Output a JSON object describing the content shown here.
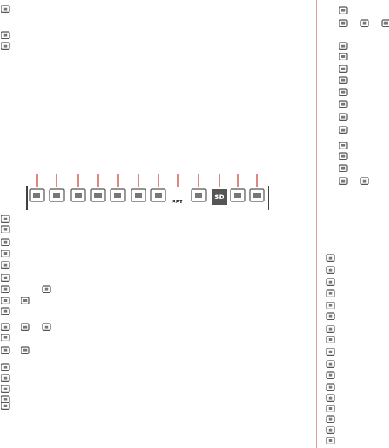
{
  "strip_icon_texts": {
    "set": "SET",
    "sd": "SD"
  }
}
